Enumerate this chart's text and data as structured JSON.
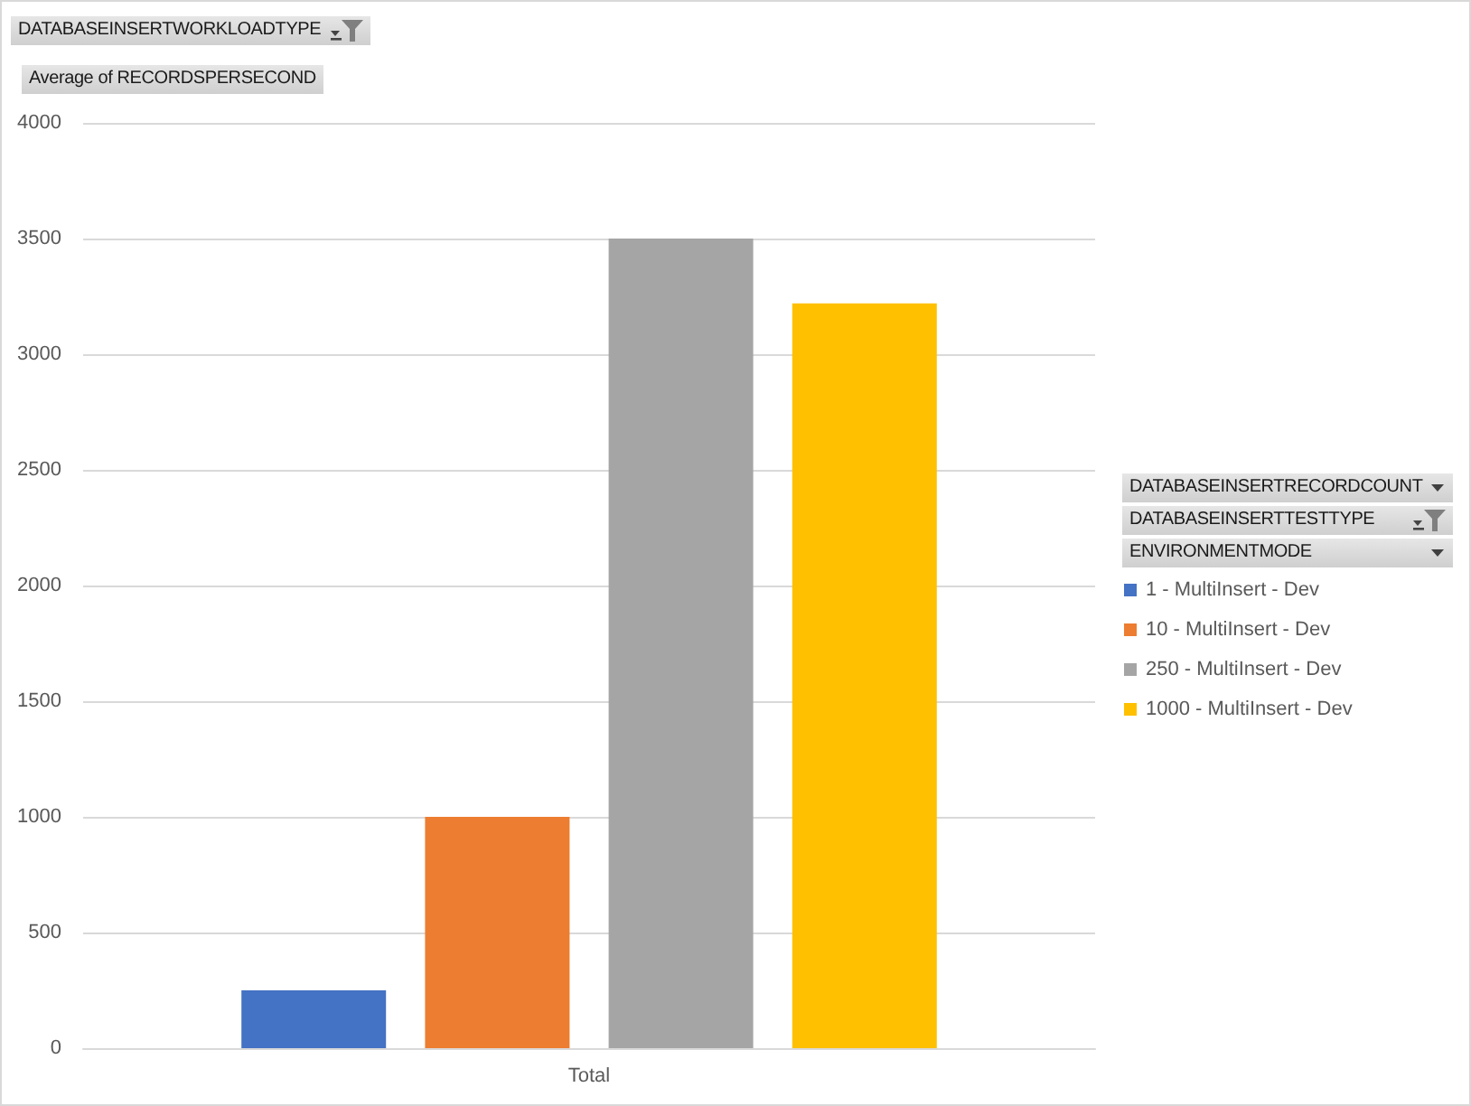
{
  "chart_data": {
    "type": "bar",
    "ylabel": "Average of RECORDSPERSECOND",
    "categories": [
      "Total"
    ],
    "series": [
      {
        "name": "1 - MultiInsert - Dev",
        "color": "#4472c4",
        "values": [
          250
        ]
      },
      {
        "name": "10 - MultiInsert - Dev",
        "color": "#ed7d31",
        "values": [
          1000
        ]
      },
      {
        "name": "250 - MultiInsert - Dev",
        "color": "#a5a5a5",
        "values": [
          3500
        ]
      },
      {
        "name": "1000 - MultiInsert - Dev",
        "color": "#ffc000",
        "values": [
          3220
        ]
      }
    ],
    "ylim": [
      0,
      4000
    ],
    "yticks": [
      0,
      500,
      1000,
      1500,
      2000,
      2500,
      3000,
      3500,
      4000
    ],
    "grid": "y",
    "legend": "right",
    "annotations": [
      "DATABASEINSERTWORKLOADTYPE",
      "DATABASEINSERTRECORDCOUNT",
      "DATABASEINSERTTESTTYPE",
      "ENVIRONMENTMODE"
    ]
  }
}
